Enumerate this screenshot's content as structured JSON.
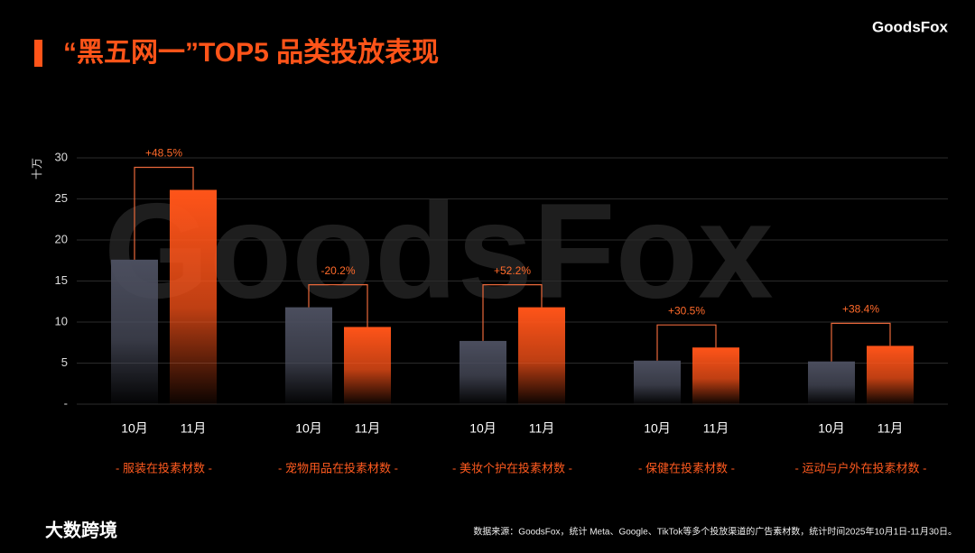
{
  "header": {
    "logo": "GoodsFox"
  },
  "watermark": "GoodsFox",
  "chart_data": {
    "type": "bar",
    "title": "“黑五网一”TOP5 品类投放表现",
    "y_label": "十万",
    "categories": [
      "- 服装在投素材数 -",
      "- 宠物用品在投素材数 -",
      "- 美妆个护在投素材数 -",
      "- 保健在投素材数 -",
      "- 运动与户外在投素材数 -"
    ],
    "series": [
      {
        "name": "10月",
        "color": "#4b4e5e",
        "values": [
          17.6,
          11.8,
          7.7,
          5.3,
          5.2
        ]
      },
      {
        "name": "11月",
        "color": "#ff5419",
        "values": [
          26.1,
          9.4,
          11.8,
          6.9,
          7.1
        ]
      }
    ],
    "changes": [
      "+48.5%",
      "-20.2%",
      "+52.2%",
      "+30.5%",
      "+38.4%"
    ],
    "ylim": [
      0,
      30
    ],
    "yticks": [
      {
        "value": 0,
        "label": "-"
      },
      5,
      10,
      15,
      20,
      25,
      30
    ],
    "grid": true
  },
  "footer": {
    "brand": "大数跨境",
    "source": "数据来源：GoodsFox，统计 Meta、Google、TikTok等多个投放渠道的广告素材数，统计时间2025年10月1日-11月30日。"
  }
}
